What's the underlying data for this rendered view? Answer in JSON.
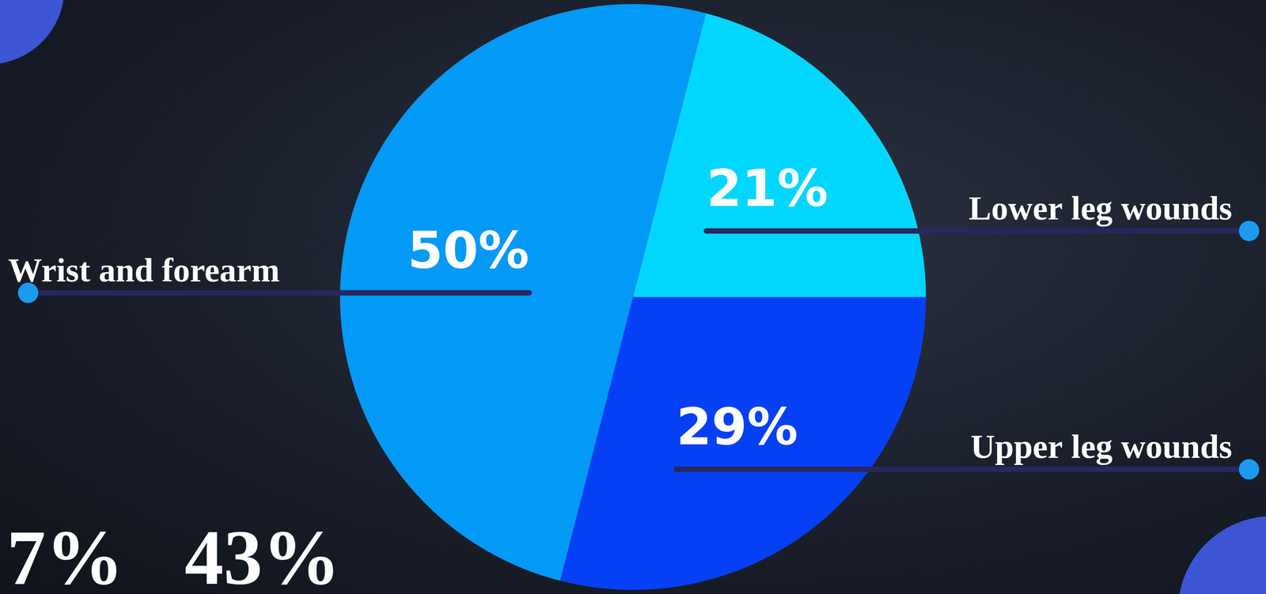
{
  "chart_data": {
    "type": "pie",
    "categories": [
      "Lower leg wounds",
      "Upper leg wounds",
      "Wrist and forearm"
    ],
    "values": [
      21,
      29,
      50
    ],
    "value_labels": [
      "21%",
      "29%",
      "50%"
    ],
    "colors": [
      "#00d6ff",
      "#0540f5",
      "#0399f7"
    ],
    "data_labels": true,
    "annotations": [
      "7%",
      "43%"
    ]
  }
}
